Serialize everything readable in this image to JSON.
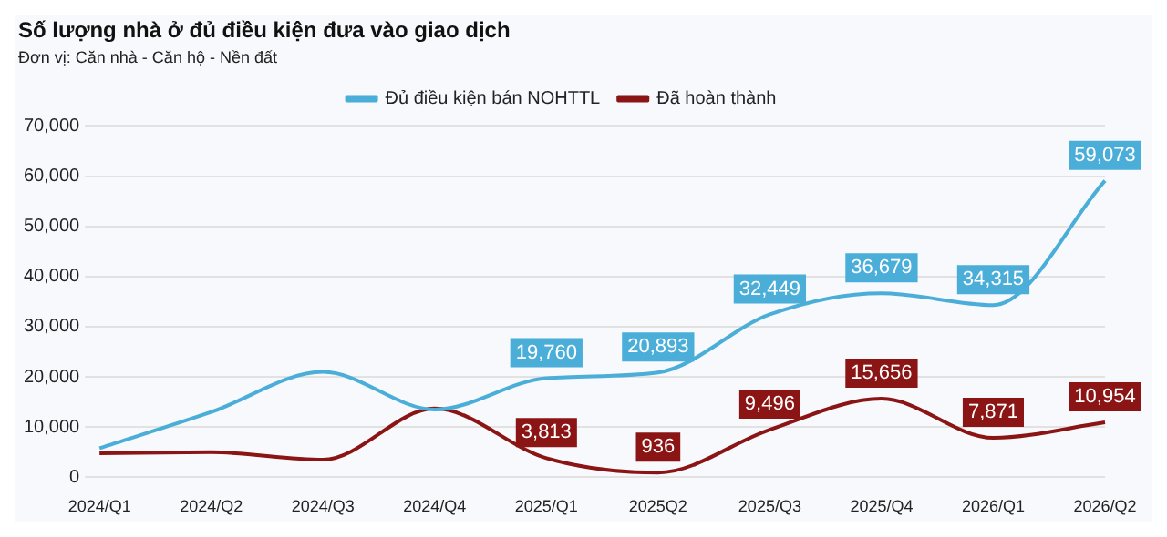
{
  "chart_data": {
    "type": "line",
    "title": "Số lượng nhà ở đủ điều kiện đưa vào giao dịch",
    "subtitle": "Đơn vị: Căn nhà - Căn hộ - Nền đất",
    "categories": [
      "2024/Q1",
      "2024/Q2",
      "2024/Q3",
      "2024/Q4",
      "2025/Q1",
      "2025Q2",
      "2025/Q3",
      "2025/Q4",
      "2026/Q1",
      "2026/Q2"
    ],
    "series": [
      {
        "name": "Đủ điều kiện bán NOHTTL",
        "color": "#4aaed9",
        "values": [
          5800,
          13000,
          21000,
          13500,
          19760,
          20893,
          32449,
          36679,
          34315,
          59073
        ],
        "value_labels": [
          null,
          null,
          null,
          null,
          "19,760",
          "20,893",
          "32,449",
          "36,679",
          "34,315",
          "59,073"
        ]
      },
      {
        "name": "Đã hoàn thành",
        "color": "#8b1414",
        "values": [
          4800,
          5000,
          3500,
          13700,
          3813,
          936,
          9496,
          15656,
          7871,
          10954
        ],
        "value_labels": [
          null,
          null,
          null,
          null,
          "3,813",
          "936",
          "9,496",
          "15,656",
          "7,871",
          "10,954"
        ]
      }
    ],
    "ylim": [
      0,
      70000
    ],
    "yticks": [
      {
        "value": 0,
        "label": "0"
      },
      {
        "value": 10000,
        "label": "10,000"
      },
      {
        "value": 20000,
        "label": "20,000"
      },
      {
        "value": 30000,
        "label": "30,000"
      },
      {
        "value": 40000,
        "label": "40,000"
      },
      {
        "value": 50000,
        "label": "50,000"
      },
      {
        "value": 60000,
        "label": "60,000"
      },
      {
        "value": 70000,
        "label": "70,000"
      }
    ],
    "grid": "y",
    "legend": "top",
    "line_style": "solid"
  }
}
